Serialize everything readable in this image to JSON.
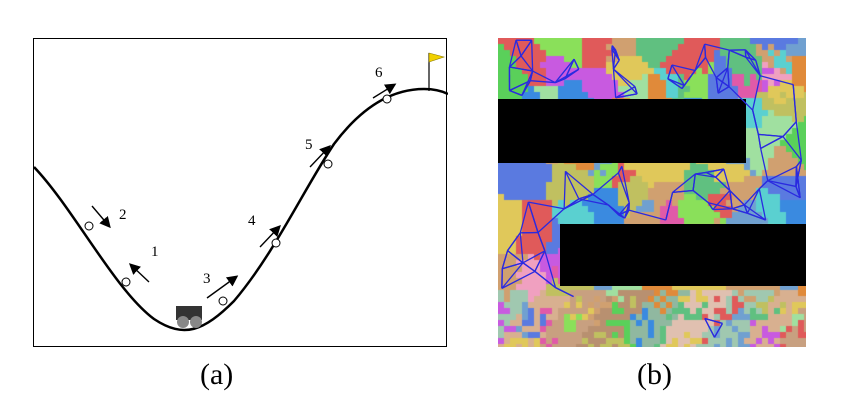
{
  "panel_a": {
    "caption": "(a)",
    "steps": [
      {
        "label": "1",
        "dir": "up-right-back"
      },
      {
        "label": "2",
        "dir": "down-right"
      },
      {
        "label": "3",
        "dir": "up-right"
      },
      {
        "label": "4",
        "dir": "up-right"
      },
      {
        "label": "5",
        "dir": "up-right"
      },
      {
        "label": "6",
        "dir": "up-right"
      }
    ],
    "colors": {
      "curve": "#000000",
      "flag": "#f0d000",
      "cart_body": "#333333",
      "cart_wheel": "#888888"
    }
  },
  "panel_b": {
    "caption": "(b)",
    "colors": {
      "obstacle": "#000000",
      "graph_edges": "#2a2ae0"
    }
  }
}
